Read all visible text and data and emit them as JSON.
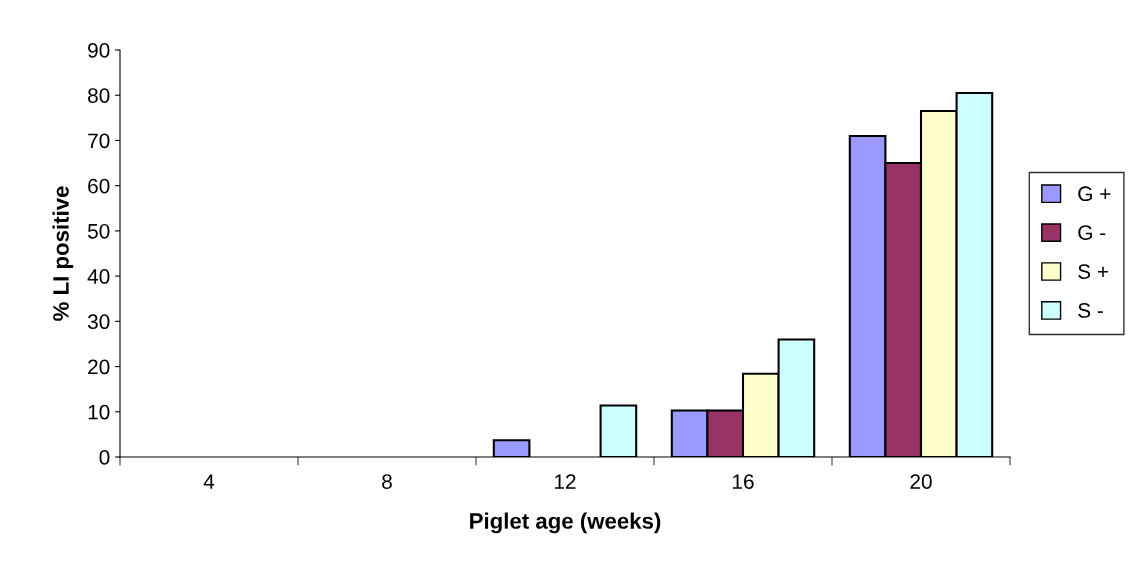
{
  "chart_data": {
    "type": "bar",
    "xlabel": "Piglet age (weeks)",
    "ylabel": "% LI positive",
    "categories": [
      "4",
      "8",
      "12",
      "16",
      "20"
    ],
    "series": [
      {
        "name": "G +",
        "color": "#9999ff",
        "values": [
          0,
          0,
          3.7,
          10.3,
          71
        ]
      },
      {
        "name": "G -",
        "color": "#993366",
        "values": [
          0,
          0,
          0,
          10.3,
          65
        ]
      },
      {
        "name": "S +",
        "color": "#ffffcc",
        "values": [
          0,
          0,
          0,
          18.4,
          76.5
        ]
      },
      {
        "name": "S -",
        "color": "#ccffff",
        "values": [
          0,
          0,
          11.4,
          26,
          80.5
        ]
      }
    ],
    "ylim": [
      0,
      90
    ],
    "yticks": [
      0,
      10,
      20,
      30,
      40,
      50,
      60,
      70,
      80,
      90
    ],
    "grid": false,
    "legend": "right"
  }
}
